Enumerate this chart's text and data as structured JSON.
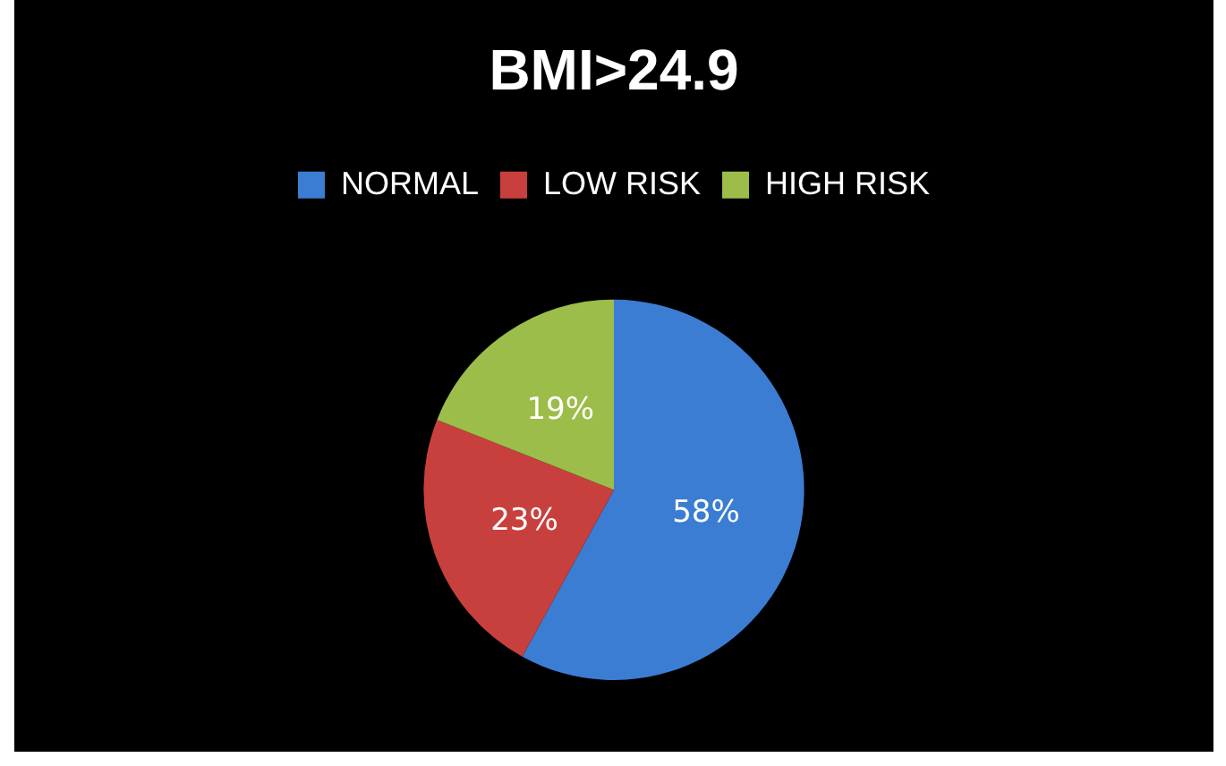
{
  "chart_data": {
    "type": "pie",
    "title": "BMI>24.9",
    "categories": [
      "NORMAL",
      "LOW RISK",
      "HIGH RISK"
    ],
    "values": [
      58,
      23,
      19
    ],
    "value_labels": [
      "58%",
      "23%",
      "19%"
    ],
    "colors": [
      "#3b7dd2",
      "#c8403d",
      "#9cbd4a"
    ],
    "legend": "top"
  }
}
